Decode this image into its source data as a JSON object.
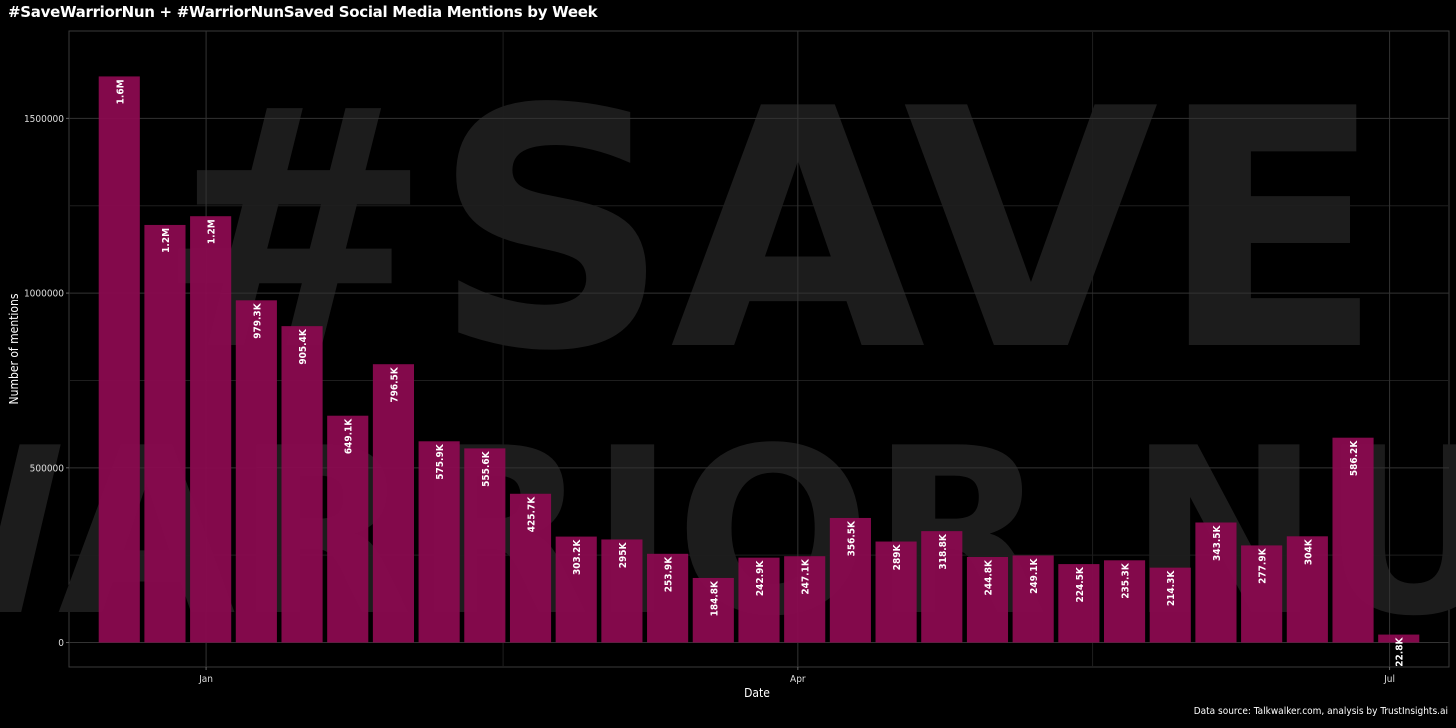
{
  "chart_data": {
    "type": "bar",
    "title": "#SaveWarriorNun + #WarriorNunSaved Social Media Mentions by Week",
    "xlabel": "Date",
    "ylabel": "Number of mentions",
    "caption": "Data source: Talkwalker.com, analysis by TrustInsights.ai",
    "ylim": [
      -70000,
      1750000
    ],
    "y_ticks": [
      0,
      500000,
      1000000,
      1500000
    ],
    "y_tick_labels": [
      "0",
      "500000",
      "1000000",
      "1500000"
    ],
    "x_ticks": [
      {
        "label": "Jan",
        "index": 1.9
      },
      {
        "label": "Apr",
        "index": 14.85
      },
      {
        "label": "Jul",
        "index": 27.8
      }
    ],
    "x_minor_ticks": [
      8.4,
      21.3
    ],
    "bar_color": "#8b0a50",
    "grid": true,
    "values": [
      1620000,
      1195000,
      1220000,
      979300,
      905400,
      649100,
      796500,
      575900,
      555600,
      425700,
      303200,
      295000,
      253900,
      184800,
      242900,
      247100,
      356500,
      289000,
      318800,
      244800,
      249100,
      224500,
      235300,
      214300,
      343500,
      277900,
      304000,
      586200,
      22800
    ],
    "labels": [
      "1.6M",
      "1.2M",
      "1.2M",
      "979.3K",
      "905.4K",
      "649.1K",
      "796.5K",
      "575.9K",
      "555.6K",
      "425.7K",
      "303.2K",
      "295K",
      "253.9K",
      "184.8K",
      "242.9K",
      "247.1K",
      "356.5K",
      "289K",
      "318.8K",
      "244.8K",
      "249.1K",
      "224.5K",
      "235.3K",
      "214.3K",
      "343.5K",
      "277.9K",
      "304K",
      "586.2K",
      "22.8K"
    ],
    "watermark": [
      "#SAVE",
      "WARRIOR NUN"
    ]
  }
}
